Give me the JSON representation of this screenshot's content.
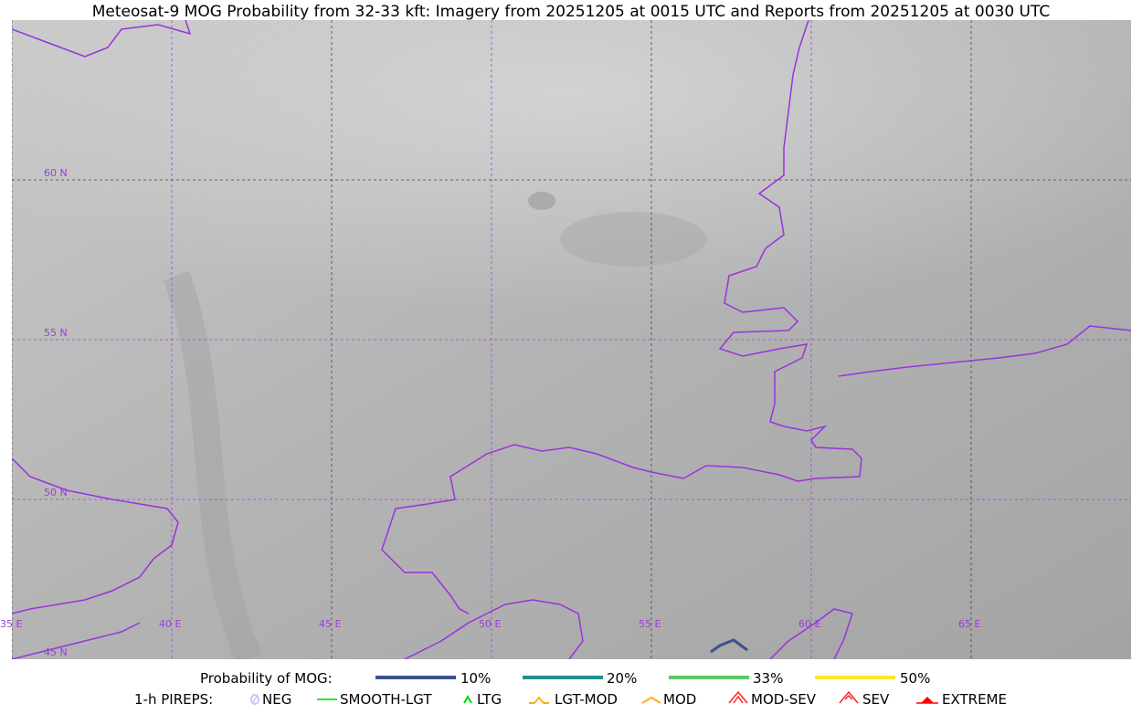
{
  "title": "Meteosat-9 MOG Probability from 32-33 kft: Imagery from 20251205 at 0015 UTC and Reports from 20251205 at 0030 UTC",
  "map": {
    "lat_labels": [
      "60 N",
      "55 N",
      "50 N",
      "45 N"
    ],
    "lon_labels": [
      "35 E",
      "40 E",
      "45 E",
      "50 E",
      "55 E",
      "60 E",
      "65 E"
    ],
    "border_color": "#9933dd"
  },
  "legend": {
    "prob_title": "Probability of MOG:",
    "prob": [
      {
        "label": "10%",
        "color": "#3b528b"
      },
      {
        "label": "20%",
        "color": "#21918c"
      },
      {
        "label": "33%",
        "color": "#5ec962"
      },
      {
        "label": "50%",
        "color": "#fde725"
      }
    ],
    "pirep_title": "1-h PIREPS:",
    "pireps": [
      {
        "label": "NEG",
        "color": "#c8c8f8"
      },
      {
        "label": "SMOOTH-LGT",
        "color": "#22ee22"
      },
      {
        "label": "LTG",
        "color": "#00dd00"
      },
      {
        "label": "LGT-MOD",
        "color": "#ffaa22"
      },
      {
        "label": "MOD",
        "color": "#ffaa22"
      },
      {
        "label": "MOD-SEV",
        "color": "#ff2222"
      },
      {
        "label": "SEV",
        "color": "#ff2222"
      },
      {
        "label": "EXTREME",
        "color": "#ff0000"
      }
    ]
  }
}
